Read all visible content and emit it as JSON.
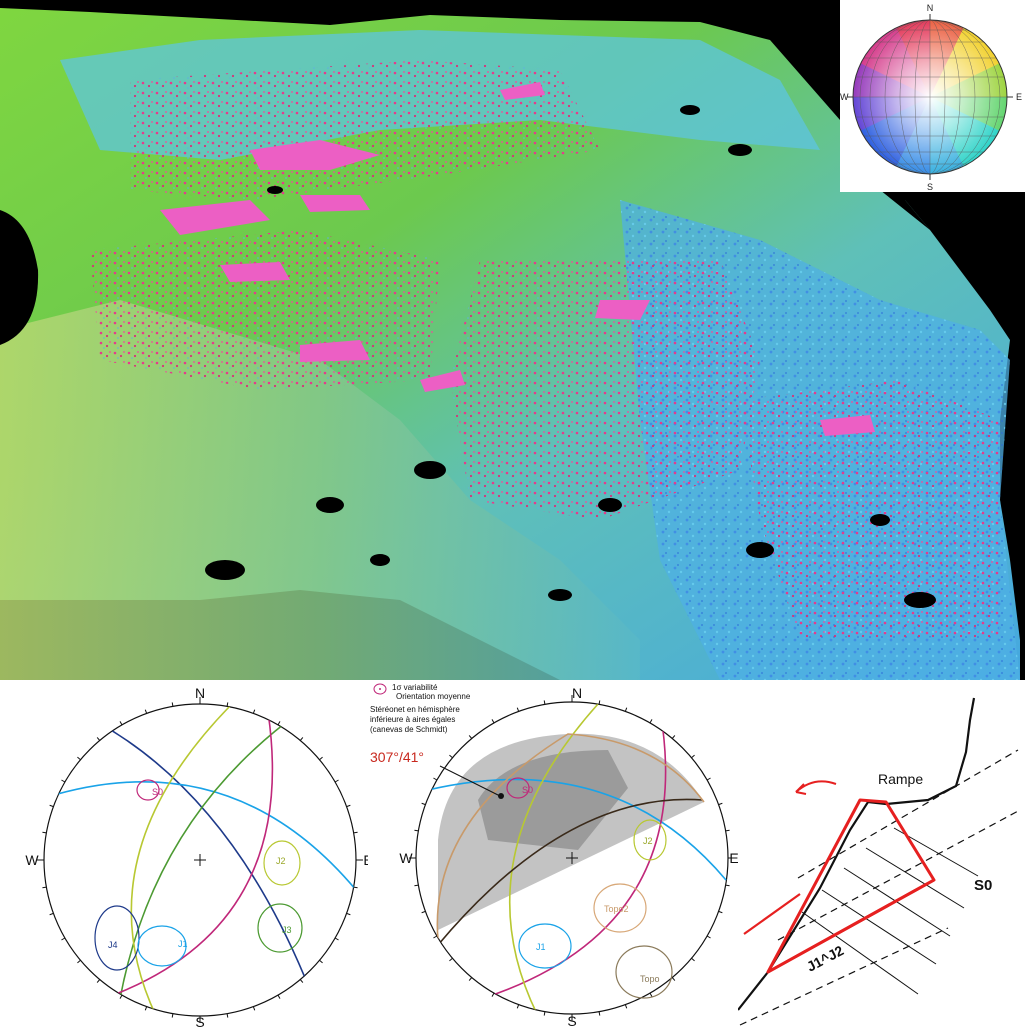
{
  "legend_net": {
    "north": "N",
    "south": "S",
    "west": "W",
    "east": "E"
  },
  "stereonet_left": {
    "north": "N",
    "south": "S",
    "west": "W",
    "east": "E",
    "labels": {
      "s0": "S0",
      "j1": "J1",
      "j2": "J2",
      "j3": "J3",
      "j4": "J4"
    }
  },
  "stereonet_right": {
    "north": "N",
    "south": "S",
    "west": "W",
    "east": "E",
    "legend": {
      "variability": "1σ variabilité",
      "mean": "Orientation moyenne",
      "desc_line1": "Stéréonet en hémisphère",
      "desc_line2": "inférieure à aires égales",
      "desc_line3": "(canevas de Schmidt)"
    },
    "orientation": "307°/41°",
    "labels": {
      "s0": "S0",
      "j1": "J1",
      "j2": "J2",
      "topo2": "Topo2",
      "topo": "Topo"
    }
  },
  "ramp_diagram": {
    "rampe": "Rampe",
    "s0": "S0",
    "j1j2": "J1^J2"
  },
  "colors": {
    "s0": "#c0287a",
    "j1": "#1aa3e8",
    "j2": "#b8c832",
    "j3": "#4c9a32",
    "j4": "#1e3a8a",
    "orient": "#c8281e",
    "ramp": "#e62020"
  }
}
